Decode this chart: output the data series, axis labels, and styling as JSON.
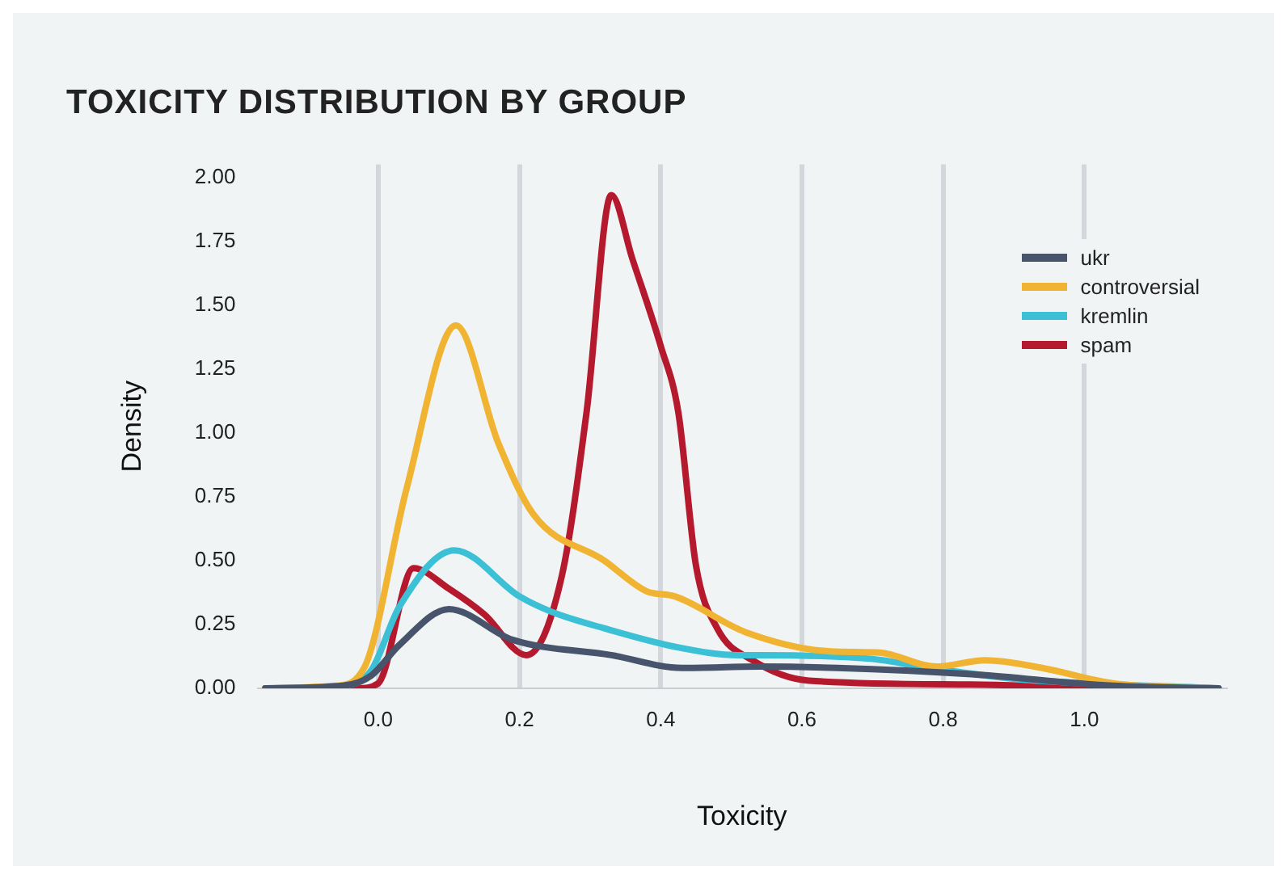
{
  "chart_data": {
    "type": "line",
    "title": "TOXICITY DISTRIBUTION BY GROUP",
    "xlabel": "Toxicity",
    "ylabel": "Density",
    "series": [
      {
        "name": "ukr",
        "color": "#47546b",
        "x": [
          -0.16,
          -0.05,
          -0.01,
          0.03,
          0.1,
          0.19,
          0.33,
          0.43,
          0.54,
          0.65,
          0.84,
          1.04,
          1.19
        ],
        "values": [
          0,
          0.01,
          0.05,
          0.17,
          0.31,
          0.19,
          0.13,
          0.08,
          0.085,
          0.08,
          0.055,
          0.01,
          0
        ]
      },
      {
        "name": "controversial",
        "color": "#f0b432",
        "x": [
          -0.16,
          -0.06,
          -0.02,
          0.04,
          0.11,
          0.17,
          0.22,
          0.32,
          0.38,
          0.42,
          0.52,
          0.64,
          0.71,
          0.79,
          0.86,
          0.94,
          1.04,
          1.19
        ],
        "values": [
          0,
          0.01,
          0.08,
          0.78,
          1.42,
          0.96,
          0.68,
          0.5,
          0.38,
          0.36,
          0.22,
          0.145,
          0.14,
          0.085,
          0.11,
          0.08,
          0.02,
          0
        ]
      },
      {
        "name": "kremlin",
        "color": "#3cc0d6",
        "x": [
          -0.16,
          -0.05,
          -0.01,
          0.03,
          0.108,
          0.2,
          0.245,
          0.32,
          0.425,
          0.51,
          0.54,
          0.7,
          0.78,
          0.91,
          1.19
        ],
        "values": [
          0,
          0.01,
          0.07,
          0.32,
          0.54,
          0.36,
          0.3,
          0.235,
          0.16,
          0.13,
          0.13,
          0.115,
          0.08,
          0.035,
          0
        ]
      },
      {
        "name": "spam",
        "color": "#b5192e",
        "x": [
          -0.16,
          -0.03,
          0.0,
          0.05,
          0.1,
          0.15,
          0.21,
          0.26,
          0.295,
          0.33,
          0.36,
          0.4,
          0.425,
          0.45,
          0.48,
          0.53,
          0.61,
          0.84,
          1.06,
          1.19
        ],
        "values": [
          0,
          0,
          0.02,
          0.47,
          0.39,
          0.29,
          0.13,
          0.44,
          1.08,
          1.93,
          1.68,
          1.34,
          1.08,
          0.48,
          0.235,
          0.11,
          0.03,
          0.015,
          0,
          0
        ]
      }
    ],
    "xlim": [
      -0.17,
      1.2
    ],
    "ylim": [
      0,
      2.05
    ],
    "xticks": [
      {
        "value": 0,
        "label": "0.0"
      },
      {
        "value": 0.2,
        "label": "0.2"
      },
      {
        "value": 0.4,
        "label": "0.4"
      },
      {
        "value": 0.6,
        "label": "0.6"
      },
      {
        "value": 0.8,
        "label": "0.8"
      },
      {
        "value": 1,
        "label": "1.0"
      }
    ],
    "yticks": [
      {
        "value": 0,
        "label": "0.00"
      },
      {
        "value": 0.25,
        "label": "0.25"
      },
      {
        "value": 0.5,
        "label": "0.50"
      },
      {
        "value": 0.75,
        "label": "0.75"
      },
      {
        "value": 1,
        "label": "1.00"
      },
      {
        "value": 1.25,
        "label": "1.25"
      },
      {
        "value": 1.5,
        "label": "1.50"
      },
      {
        "value": 1.75,
        "label": "1.75"
      },
      {
        "value": 2,
        "label": "2.00"
      }
    ],
    "grid": "x",
    "legend": "top right"
  }
}
